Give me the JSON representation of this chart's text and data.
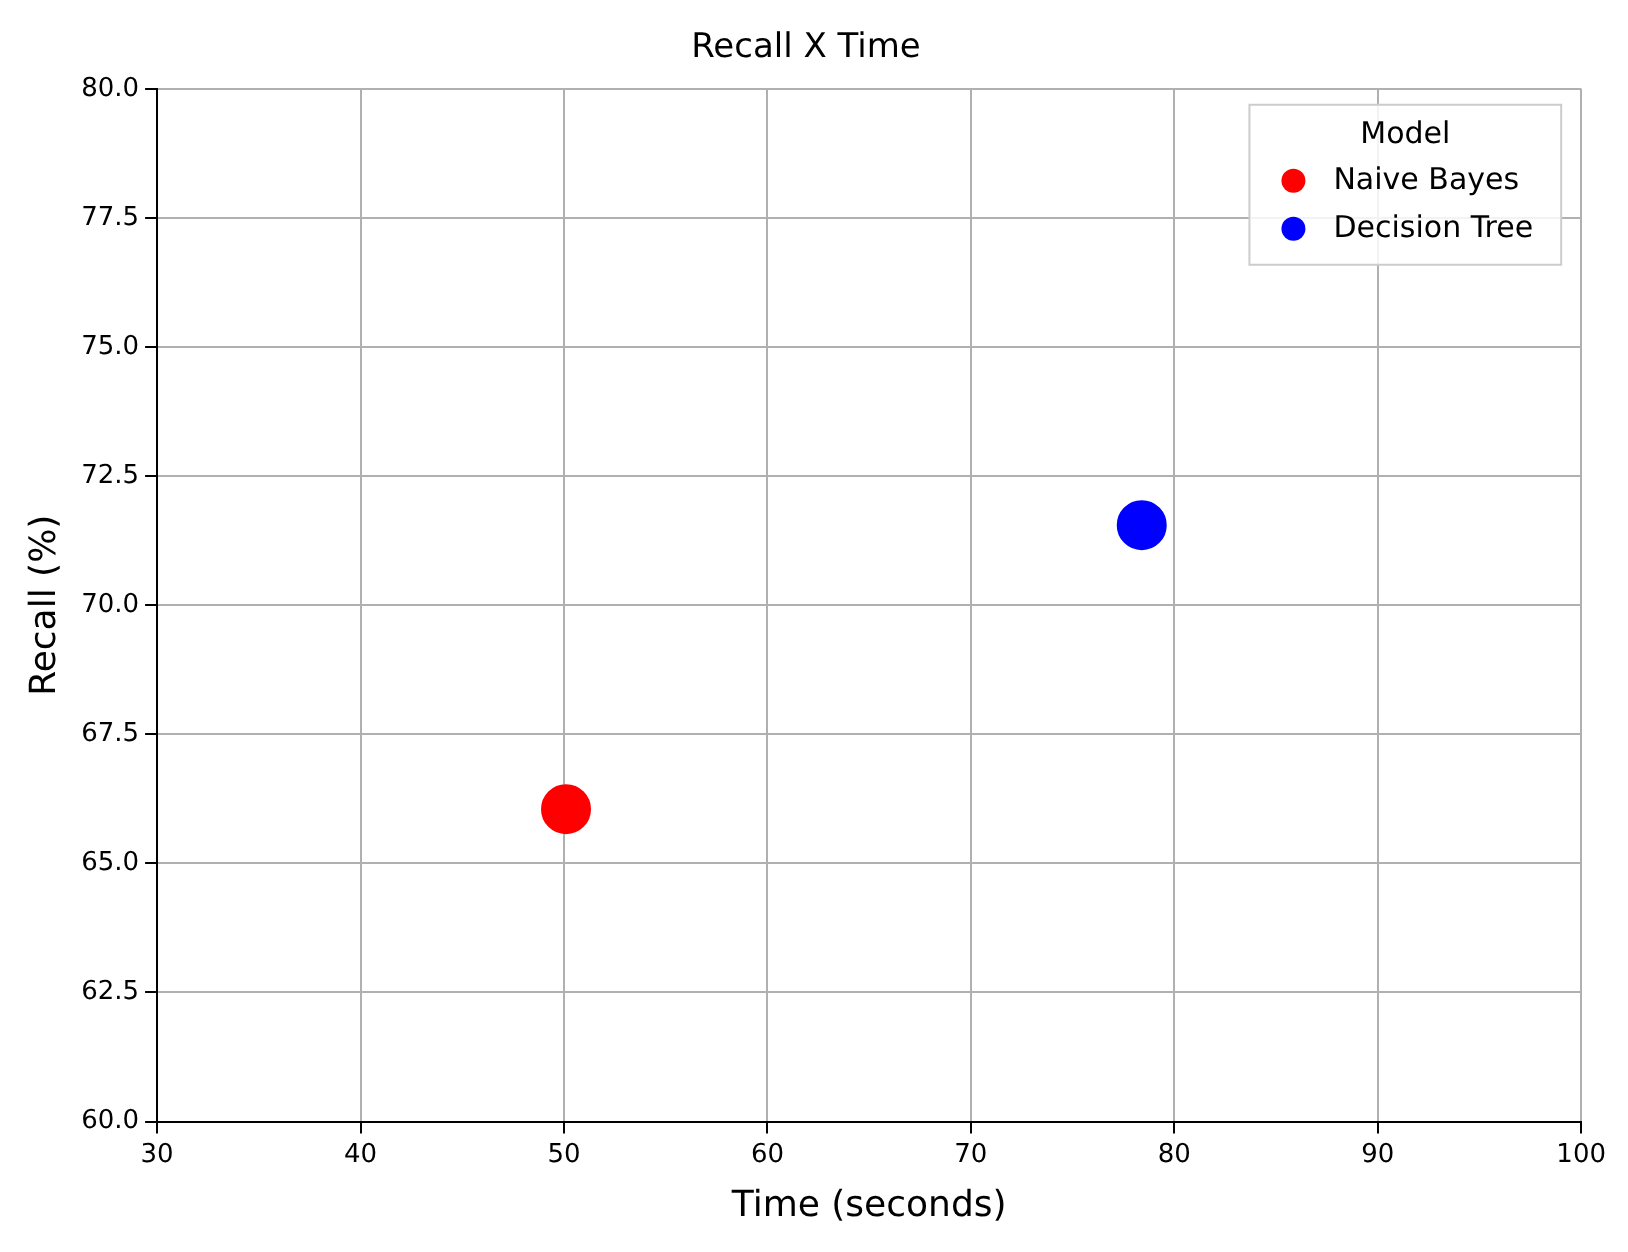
{
  "chart_data": {
    "type": "scatter",
    "title": "Recall X Time",
    "xlabel": "Time (seconds)",
    "ylabel": "Recall (%)",
    "legend_title": "Model",
    "series": [
      {
        "name": "Naive Bayes",
        "color": "#ff0000",
        "x": [
          50.1
        ],
        "values": [
          66.05
        ]
      },
      {
        "name": "Decision Tree",
        "color": "#0000ff",
        "x": [
          78.4
        ],
        "values": [
          71.55
        ]
      }
    ],
    "xlim": [
      30,
      100
    ],
    "xticks": [
      30,
      40,
      50,
      60,
      70,
      80,
      90,
      100
    ],
    "ylim": [
      60,
      80
    ],
    "yticks": [
      {
        "value": 60,
        "label": "60.0"
      },
      {
        "value": 62.5,
        "label": "62.5"
      },
      {
        "value": 65,
        "label": "65.0"
      },
      {
        "value": 67.5,
        "label": "67.5"
      },
      {
        "value": 70,
        "label": "70.0"
      },
      {
        "value": 72.5,
        "label": "72.5"
      },
      {
        "value": 75,
        "label": "75.0"
      },
      {
        "value": 77.5,
        "label": "77.5"
      },
      {
        "value": 80,
        "label": "80.0"
      }
    ],
    "grid": true,
    "legend": "top right",
    "marker": "circle"
  }
}
